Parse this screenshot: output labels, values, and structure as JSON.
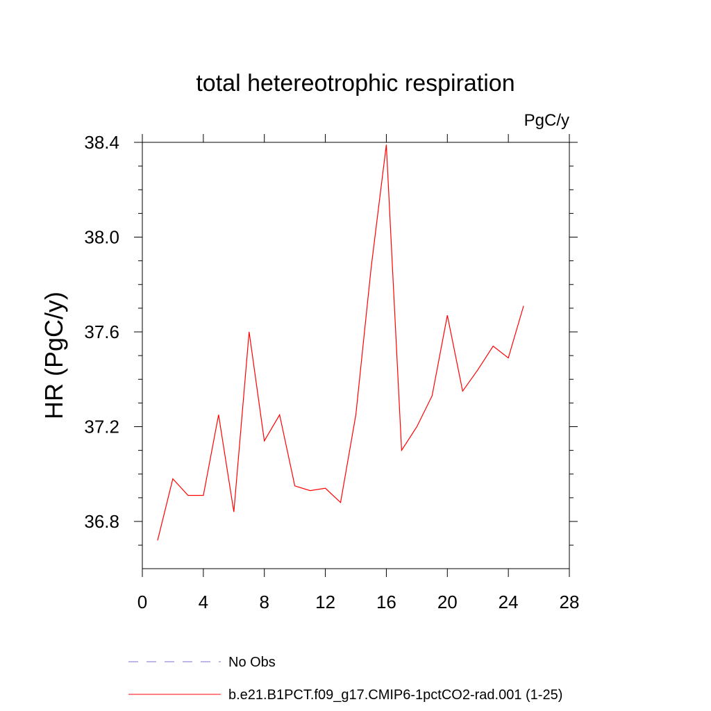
{
  "chart_data": {
    "type": "line",
    "title": "total hetereotrophic respiration",
    "units": "PgC/y",
    "xlabel": "",
    "ylabel": "HR  (PgC/y)",
    "xlim": [
      0,
      28
    ],
    "ylim": [
      36.6,
      38.45
    ],
    "x_ticks": [
      0,
      4,
      8,
      12,
      16,
      20,
      24,
      28
    ],
    "y_ticks": [
      36.8,
      37.2,
      37.6,
      38.0,
      38.4
    ],
    "x_tick_labels": [
      "0",
      "4",
      "8",
      "12",
      "16",
      "20",
      "24",
      "28"
    ],
    "y_tick_labels": [
      "36.8",
      "37.2",
      "37.6",
      "38.0",
      "38.4"
    ],
    "grid": false,
    "legend_position": "bottom",
    "x": [
      1,
      2,
      3,
      4,
      5,
      6,
      7,
      8,
      9,
      10,
      11,
      12,
      13,
      14,
      15,
      16,
      17,
      18,
      19,
      20,
      21,
      22,
      23,
      24,
      25
    ],
    "series": [
      {
        "name": "b.e21.B1PCT.f09_g17.CMIP6-1pctCO2-rad.001 (1-25)",
        "color": "#ff0000",
        "style": "solid",
        "values": [
          36.72,
          36.98,
          36.91,
          36.91,
          37.25,
          36.84,
          37.6,
          37.14,
          37.25,
          36.95,
          36.93,
          36.94,
          36.88,
          37.25,
          37.87,
          38.39,
          37.1,
          37.2,
          37.33,
          37.67,
          37.35,
          37.44,
          37.54,
          37.49,
          37.71
        ]
      }
    ],
    "legend": [
      {
        "label": "No Obs",
        "color": "#7b6fd0",
        "style": "dashed"
      },
      {
        "label": "b.e21.B1PCT.f09_g17.CMIP6-1pctCO2-rad.001 (1-25)",
        "color": "#ff0000",
        "style": "solid"
      }
    ]
  }
}
